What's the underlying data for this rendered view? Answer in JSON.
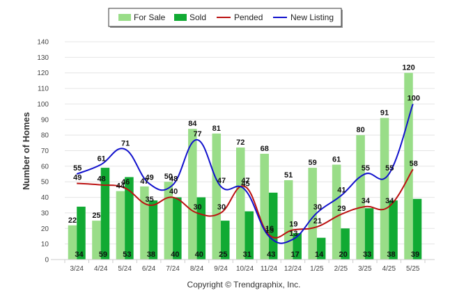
{
  "chart_data": {
    "type": "bar",
    "ylabel": "Number of Homes",
    "ylim": [
      0,
      140
    ],
    "yticks": [
      "0",
      "10",
      "20",
      "30",
      "40",
      "50",
      "60",
      "70",
      "80",
      "90",
      "100",
      "110",
      "120",
      "130",
      "140"
    ],
    "categories": [
      "3/24",
      "4/24",
      "5/24",
      "6/24",
      "7/24",
      "8/24",
      "9/24",
      "10/24",
      "11/24",
      "12/24",
      "1/25",
      "2/25",
      "3/25",
      "4/25",
      "5/25"
    ],
    "series": [
      {
        "name": "For Sale",
        "kind": "bar",
        "color": "#99dd88",
        "values": [
          22,
          25,
          44,
          47,
          50,
          84,
          81,
          72,
          68,
          51,
          59,
          61,
          80,
          91,
          120
        ]
      },
      {
        "name": "Sold",
        "kind": "bar",
        "color": "#11aa33",
        "values": [
          34,
          59,
          53,
          38,
          40,
          40,
          25,
          31,
          43,
          17,
          14,
          20,
          33,
          38,
          39
        ]
      },
      {
        "name": "Pended",
        "kind": "line",
        "color": "#bb1111",
        "values": [
          49,
          48,
          46,
          35,
          40,
          30,
          30,
          47,
          16,
          19,
          21,
          29,
          34,
          34,
          58
        ]
      },
      {
        "name": "New Listing",
        "kind": "line",
        "color": "#1111cc",
        "values": [
          55,
          61,
          71,
          49,
          48,
          77,
          47,
          45,
          15,
          13,
          30,
          41,
          55,
          55,
          100
        ]
      }
    ],
    "legend_position": "top-center",
    "grid": true
  },
  "footer": {
    "copyright": "Copyright © Trendgraphix, Inc."
  }
}
